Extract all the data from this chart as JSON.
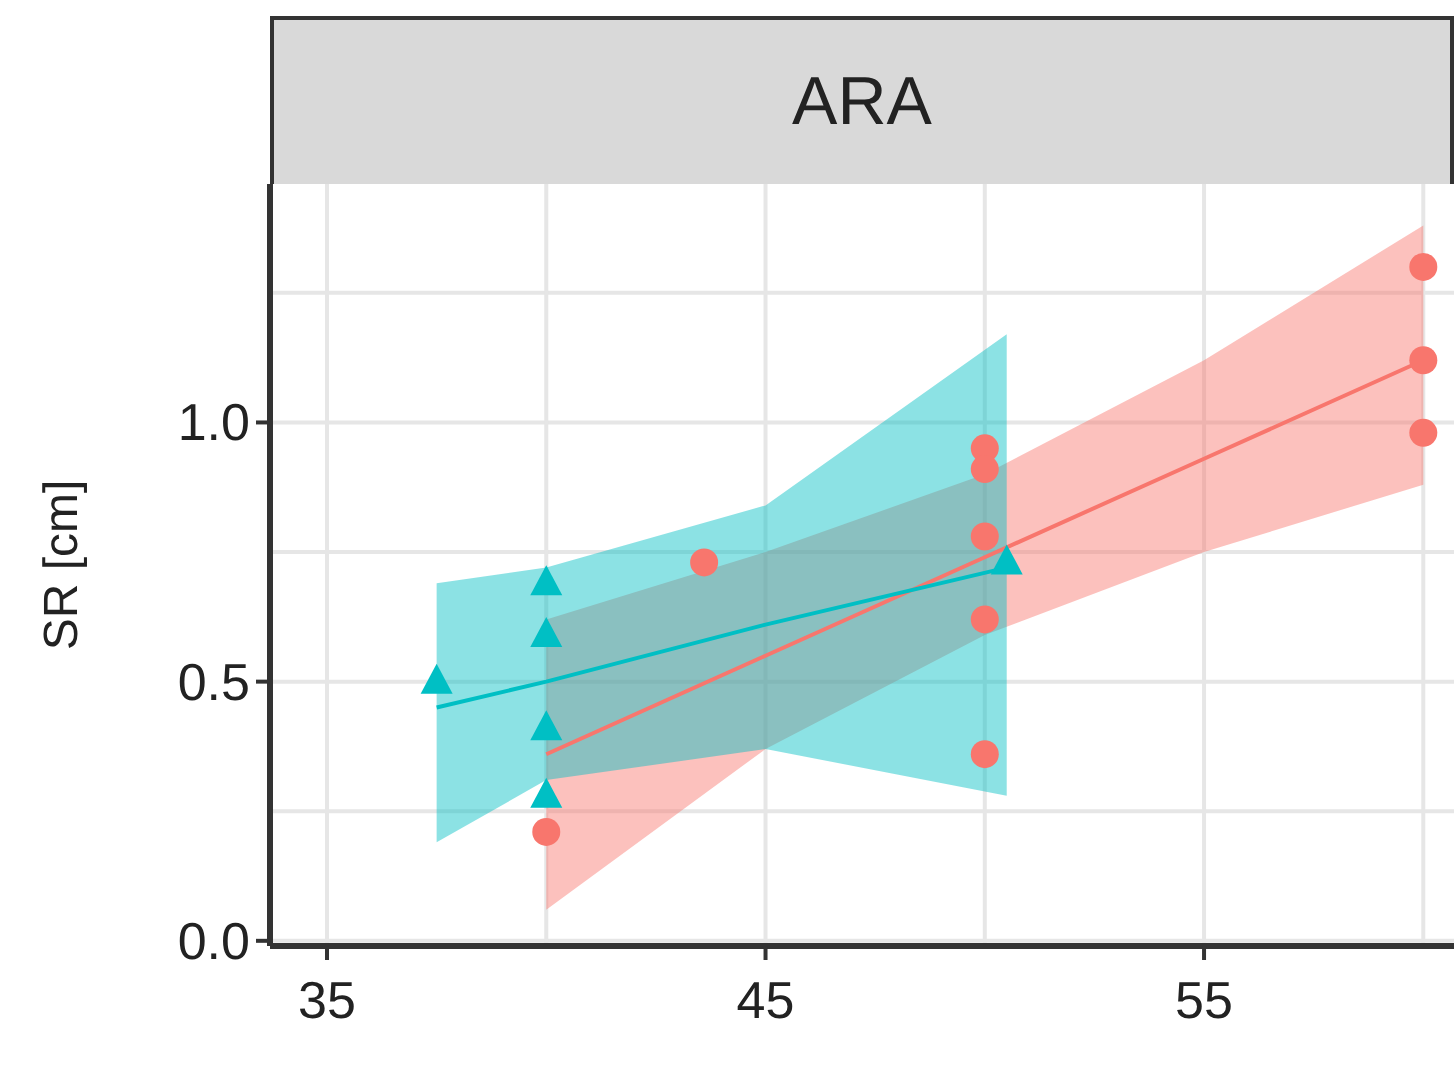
{
  "chart_data": {
    "type": "scatter",
    "title": "ARA",
    "ylabel": "SR [cm]",
    "xlim": [
      33.7,
      60.7
    ],
    "ylim": [
      -0.01,
      1.46
    ],
    "xticks": [
      35,
      {
        "value": 40,
        "label": null
      },
      45,
      {
        "value": 50,
        "label": null
      },
      55,
      {
        "value": 60,
        "label": null
      }
    ],
    "yticks": [
      {
        "value": 0,
        "label": "0.0"
      },
      {
        "value": 0.25,
        "label": null
      },
      0.5,
      {
        "value": 0.75,
        "label": null
      },
      {
        "value": 1,
        "label": "1.0"
      },
      {
        "value": 1.25,
        "label": null
      }
    ],
    "grid": true,
    "series": [
      {
        "type": "line",
        "color": "#f8766d",
        "marker": "none",
        "x": [
          40,
          45,
          50,
          55,
          60
        ],
        "values": [
          0.36,
          0.55,
          0.74,
          0.93,
          1.12
        ],
        "lower": [
          0.06,
          0.37,
          0.59,
          0.75,
          0.88
        ],
        "upper": [
          0.62,
          0.75,
          0.9,
          1.12,
          1.38
        ]
      },
      {
        "type": "line",
        "color": "#00bfc4",
        "marker": "none",
        "x": [
          37.5,
          40,
          45,
          50.5
        ],
        "values": [
          0.45,
          0.5,
          0.61,
          0.72
        ],
        "lower": [
          0.19,
          0.31,
          0.37,
          0.28
        ],
        "upper": [
          0.69,
          0.72,
          0.84,
          1.17
        ]
      },
      {
        "color": "#f8766d",
        "marker": "circle",
        "x": [
          40,
          43.6,
          50,
          50,
          50,
          50,
          50,
          60,
          60,
          60
        ],
        "values": [
          0.21,
          0.73,
          0.95,
          0.91,
          0.78,
          0.62,
          0.36,
          1.3,
          1.12,
          0.98
        ]
      },
      {
        "color": "#00bfc4",
        "marker": "triangle",
        "x": [
          37.5,
          40,
          40,
          40,
          40,
          50.5
        ],
        "values": [
          0.5,
          0.69,
          0.59,
          0.41,
          0.28,
          0.73
        ]
      }
    ]
  }
}
